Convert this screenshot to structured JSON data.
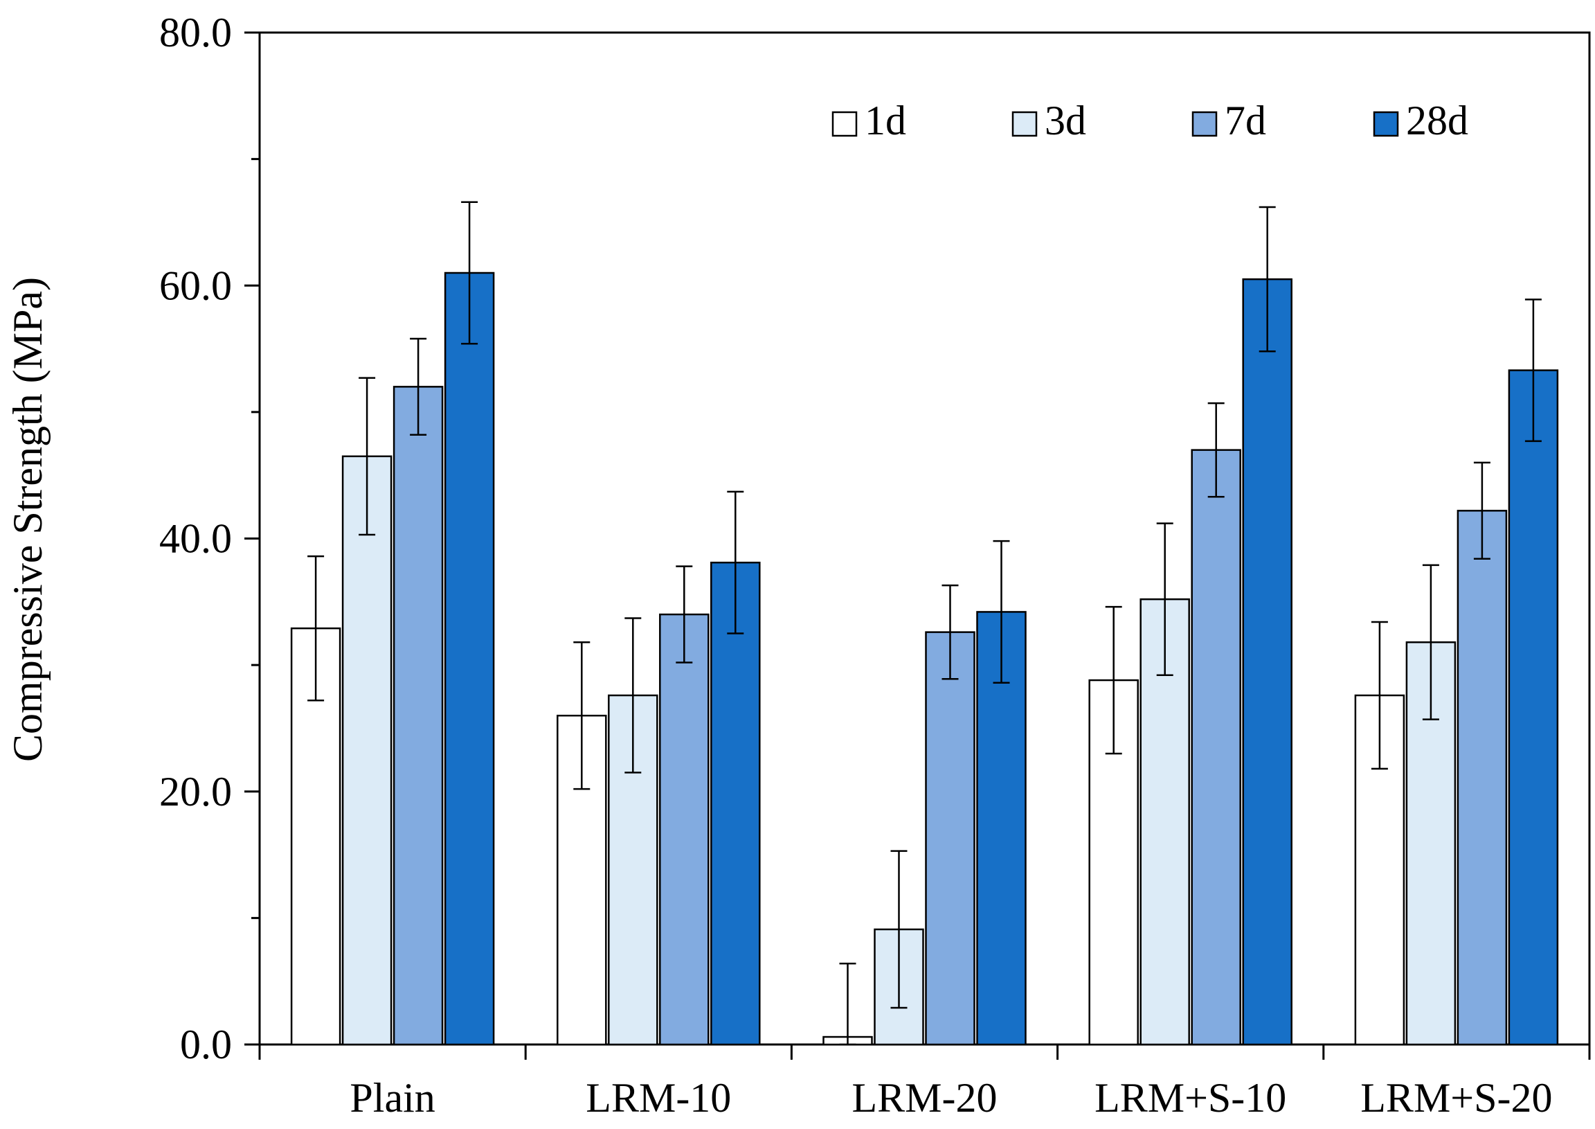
{
  "chart_data": {
    "type": "bar",
    "title": "",
    "xlabel": "",
    "ylabel": "Compressive Strength (MPa)",
    "ylim": [
      0,
      80
    ],
    "yticks": [
      "0.0",
      "20.0",
      "40.0",
      "60.0",
      "80.0"
    ],
    "ytick_values": [
      0,
      20,
      40,
      60,
      80
    ],
    "minor_tick_step": 10,
    "categories": [
      "Plain",
      "LRM-10",
      "LRM-20",
      "LRM+S-10",
      "LRM+S-20"
    ],
    "legend_position": "top-right",
    "grid": false,
    "series": [
      {
        "name": "1d",
        "color": "#ffffff",
        "values": [
          32.9,
          26.0,
          0.6,
          28.8,
          27.6
        ],
        "errors": [
          5.7,
          5.8,
          5.8,
          5.8,
          5.8
        ]
      },
      {
        "name": "3d",
        "color": "#dcebf7",
        "values": [
          46.5,
          27.6,
          9.1,
          35.2,
          31.8
        ],
        "errors": [
          6.2,
          6.1,
          6.2,
          6.0,
          6.1
        ]
      },
      {
        "name": "7d",
        "color": "#82abe0",
        "values": [
          52.0,
          34.0,
          32.6,
          47.0,
          42.2
        ],
        "errors": [
          3.8,
          3.8,
          3.7,
          3.7,
          3.8
        ]
      },
      {
        "name": "28d",
        "color": "#1770c7",
        "values": [
          61.0,
          38.1,
          34.2,
          60.5,
          53.3
        ],
        "errors": [
          5.6,
          5.6,
          5.6,
          5.7,
          5.6
        ]
      }
    ]
  }
}
